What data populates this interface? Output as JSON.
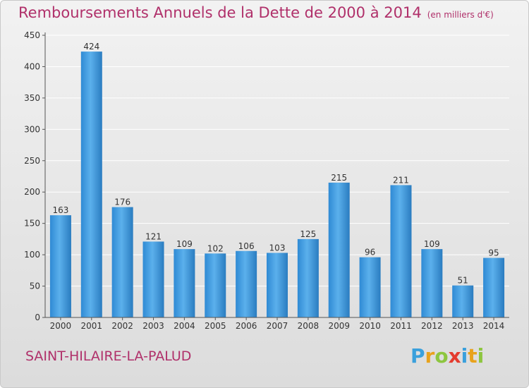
{
  "header": {
    "title": "Remboursements Annuels de la Dette de 2000 à 2014",
    "unit": "(en milliers d'€)"
  },
  "footer": {
    "commune": "SAINT-HILAIRE-LA-PALUD",
    "brand": "Proxiti",
    "brand_letters": [
      "P",
      "r",
      "o",
      "x",
      "i",
      "t",
      "i"
    ]
  },
  "colors": {
    "title": "#b0306a",
    "bar": "#3a96dc",
    "bar_light": "#5cb0ec",
    "bar_dark": "#2a7cc0",
    "grid": "#ffffff",
    "axis": "#555555"
  },
  "chart_data": {
    "type": "bar",
    "title": "Remboursements Annuels de la Dette de 2000 à 2014",
    "subtitle": "(en milliers d'€)",
    "categories": [
      "2000",
      "2001",
      "2002",
      "2003",
      "2004",
      "2005",
      "2006",
      "2007",
      "2008",
      "2009",
      "2010",
      "2011",
      "2012",
      "2013",
      "2014"
    ],
    "values": [
      163,
      424,
      176,
      121,
      109,
      102,
      106,
      103,
      125,
      215,
      96,
      211,
      109,
      51,
      95
    ],
    "ylim": [
      0,
      450
    ],
    "yticks": [
      0,
      50,
      100,
      150,
      200,
      250,
      300,
      350,
      400,
      450
    ],
    "grid": true,
    "data_labels": true
  }
}
